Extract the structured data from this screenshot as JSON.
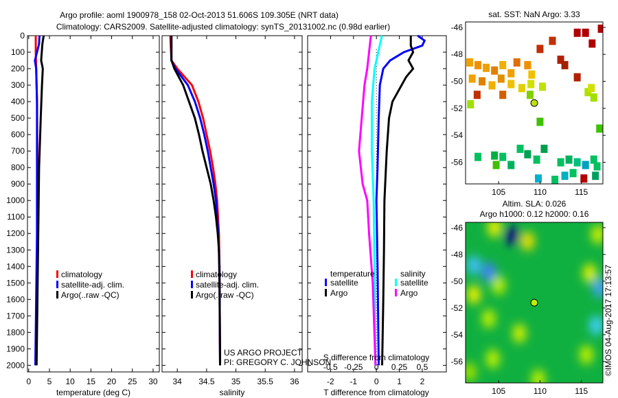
{
  "header": {
    "line1": "Argo profile: aoml 1900978_158 02-Oct-2013 51.606S 109.305E (NRT data)",
    "line2": "Climatology: CARS2009. Satellite-adjusted climatology: synTS_20131002.nc (0.98d earlier)"
  },
  "credit": {
    "project": "US ARGO PROJECT",
    "pi": "PI: GREGORY C. JOHNSON"
  },
  "timestamp": "©IMOS 04-Aug-2017 17:13:57",
  "colors": {
    "clim": "#ff0000",
    "sat": "#0000ff",
    "argo": "#000000",
    "s_sat": "#00ffff",
    "s_argo": "#ff00ff"
  },
  "chart_data": [
    {
      "type": "line",
      "name": "temperature",
      "xlabel": "temperature (deg C)",
      "xlim": [
        -0.3,
        31.5
      ],
      "ylim": [
        2040,
        0
      ],
      "xticks": [
        0,
        5,
        10,
        15,
        20,
        25,
        30
      ],
      "yticks": [
        0,
        100,
        200,
        300,
        400,
        500,
        600,
        700,
        800,
        900,
        1000,
        1100,
        1200,
        1300,
        1400,
        1500,
        1600,
        1700,
        1800,
        1900,
        2000
      ],
      "legend": [
        "climatology",
        "satellite-adj. clim.",
        "Argo(..raw -QC)"
      ],
      "series": [
        {
          "name": "climatology",
          "color": "#ff0000",
          "pressure": [
            0,
            100,
            200,
            400,
            800,
            1200,
            1600,
            2000
          ],
          "values": [
            1.7,
            1.7,
            1.8,
            2.0,
            2.1,
            2.1,
            1.9,
            1.7
          ]
        },
        {
          "name": "satellite-adj. clim.",
          "color": "#0000ff",
          "pressure": [
            0,
            50,
            100,
            150,
            200,
            400,
            800,
            1200,
            1600,
            2000
          ],
          "values": [
            2.6,
            2.5,
            2.0,
            1.5,
            1.8,
            2.0,
            2.0,
            2.0,
            1.8,
            1.6
          ]
        },
        {
          "name": "Argo",
          "color": "#000000",
          "pressure": [
            0,
            50,
            150,
            200,
            300,
            500,
            800,
            1200,
            1600,
            2000
          ],
          "values": [
            3.6,
            3.3,
            3.0,
            3.4,
            3.2,
            2.9,
            2.5,
            2.3,
            2.1,
            1.9
          ]
        }
      ]
    },
    {
      "type": "line",
      "name": "salinity",
      "xlabel": "salinity",
      "xlim": [
        33.74,
        36.13
      ],
      "ylim": [
        2040,
        0
      ],
      "xticks": [
        34,
        34.5,
        35,
        35.5,
        36
      ],
      "legend": [
        "climatology",
        "satellite-adj. clim.",
        "Argo(..raw -QC)"
      ],
      "series": [
        {
          "name": "climatology",
          "color": "#ff0000",
          "pressure": [
            0,
            150,
            200,
            300,
            400,
            500,
            600,
            700,
            800,
            900,
            1000,
            1200,
            1400,
            2000
          ],
          "values": [
            33.88,
            33.9,
            34.0,
            34.25,
            34.36,
            34.44,
            34.5,
            34.56,
            34.61,
            34.65,
            34.68,
            34.71,
            34.72,
            34.73
          ]
        },
        {
          "name": "satellite-adj. clim.",
          "color": "#0000ff",
          "pressure": [
            0,
            150,
            200,
            300,
            400,
            500,
            600,
            700,
            800,
            900,
            1000,
            1200,
            1400,
            2000
          ],
          "values": [
            33.9,
            33.9,
            33.97,
            34.18,
            34.3,
            34.39,
            34.46,
            34.52,
            34.57,
            34.62,
            34.66,
            34.7,
            34.72,
            34.73
          ]
        },
        {
          "name": "Argo",
          "color": "#000000",
          "pressure": [
            0,
            150,
            200,
            300,
            400,
            500,
            600,
            700,
            800,
            900,
            1000,
            1100,
            1200,
            1300,
            1500,
            2000
          ],
          "values": [
            33.9,
            33.9,
            33.95,
            34.1,
            34.2,
            34.3,
            34.37,
            34.43,
            34.5,
            34.57,
            34.62,
            34.66,
            34.69,
            34.71,
            34.72,
            34.73
          ]
        }
      ]
    },
    {
      "type": "line",
      "name": "difference",
      "xlabel": "T difference from climatology",
      "xlabel2": "S difference from climatology",
      "xlim": [
        -3,
        3.05
      ],
      "xlim_s": [
        -0.75,
        0.7625
      ],
      "xticks": [
        -2,
        -1,
        0,
        1,
        2
      ],
      "xticks_s": [
        -0.5,
        -0.25,
        0,
        0.25,
        0.5
      ],
      "legend_titles": [
        "temperature",
        "salinity"
      ],
      "legend": [
        {
          "label": "satellite",
          "color": "#0000ff"
        },
        {
          "label": "Argo",
          "color": "#000000"
        },
        {
          "label": "satellite",
          "color": "#00ffff"
        },
        {
          "label": "Argo",
          "color": "#ff00ff"
        }
      ],
      "series": [
        {
          "name": "T satellite",
          "color": "#0000ff",
          "axis": "T",
          "pressure": [
            0,
            30,
            60,
            100,
            150,
            200,
            300,
            500,
            800,
            1000,
            1400,
            2000
          ],
          "values": [
            1.8,
            2.1,
            2.0,
            1.2,
            0.6,
            0.3,
            0.15,
            0.1,
            0.05,
            0.0,
            0.05,
            0.1
          ]
        },
        {
          "name": "T Argo",
          "color": "#000000",
          "axis": "T",
          "pressure": [
            0,
            60,
            100,
            150,
            200,
            250,
            300,
            350,
            400,
            500,
            700,
            1000,
            1300,
            1600,
            2000
          ],
          "values": [
            1.5,
            1.5,
            1.6,
            1.4,
            1.6,
            1.3,
            1.1,
            0.9,
            0.7,
            0.55,
            0.45,
            0.35,
            0.33,
            0.3,
            0.25
          ]
        },
        {
          "name": "S satellite",
          "color": "#00ffff",
          "axis": "S",
          "pressure": [
            0,
            100,
            200,
            400,
            700,
            1000,
            1400,
            2000
          ],
          "values": [
            0.06,
            0.02,
            -0.02,
            -0.05,
            -0.05,
            -0.03,
            -0.02,
            -0.01
          ]
        },
        {
          "name": "S Argo",
          "color": "#ff00ff",
          "axis": "S",
          "pressure": [
            0,
            100,
            200,
            300,
            500,
            700,
            900,
            1000,
            1200,
            1500,
            2000
          ],
          "values": [
            -0.06,
            -0.08,
            -0.1,
            -0.13,
            -0.16,
            -0.19,
            -0.15,
            -0.1,
            -0.08,
            -0.04,
            -0.01
          ]
        }
      ]
    },
    {
      "type": "scatter",
      "name": "sst-map",
      "title": "sat. SST: NaN Argo: 3.33",
      "xlim": [
        101,
        117.6
      ],
      "ylim": [
        -57.6,
        -45.6
      ],
      "xticks": [
        105,
        110,
        115
      ],
      "yticks": [
        -46,
        -48,
        -50,
        -52,
        -54,
        -56
      ],
      "float": [
        109.305,
        -51.606
      ],
      "points": [
        [
          114.5,
          -46.4,
          "#b00000"
        ],
        [
          115.5,
          -46.4,
          "#b00000"
        ],
        [
          117.4,
          -46.1,
          "#b00000"
        ],
        [
          116.3,
          -47.2,
          "#b00000"
        ],
        [
          110,
          -47.6,
          "#c03000"
        ],
        [
          111.5,
          -47,
          "#c03000"
        ],
        [
          112.5,
          -48.4,
          "#b02000"
        ],
        [
          113,
          -48.8,
          "#a02000"
        ],
        [
          101.5,
          -48.6,
          "#f0a000"
        ],
        [
          102.5,
          -48.8,
          "#f09000"
        ],
        [
          103.5,
          -49,
          "#f0a000"
        ],
        [
          104.5,
          -49.2,
          "#e08000"
        ],
        [
          105.5,
          -48.8,
          "#f0b000"
        ],
        [
          106.5,
          -49.4,
          "#f0a000"
        ],
        [
          107.2,
          -48.6,
          "#e07000"
        ],
        [
          108.5,
          -48.8,
          "#f09000"
        ],
        [
          109,
          -49.5,
          "#f0c000"
        ],
        [
          101.8,
          -49.8,
          "#f0a000"
        ],
        [
          103,
          -50,
          "#e08000"
        ],
        [
          104.2,
          -50.3,
          "#f0b000"
        ],
        [
          105.3,
          -49.8,
          "#e09000"
        ],
        [
          106.5,
          -50.2,
          "#f0c000"
        ],
        [
          107.8,
          -50.5,
          "#e0d000"
        ],
        [
          108.9,
          -50.2,
          "#d0e000"
        ],
        [
          110.3,
          -50.4,
          "#c0e000"
        ],
        [
          102.4,
          -51,
          "#c03000"
        ],
        [
          105.5,
          -51,
          "#d06000"
        ],
        [
          108.8,
          -51,
          "#80d000"
        ],
        [
          101.6,
          -51.7,
          "#a0e000"
        ],
        [
          115.8,
          -50.8,
          "#b0e000"
        ],
        [
          116.5,
          -51.2,
          "#a0e000"
        ],
        [
          116.2,
          -50.5,
          "#d0e000"
        ],
        [
          114.5,
          -49.7,
          "#b02000"
        ],
        [
          110,
          -53,
          "#40c000"
        ],
        [
          117.2,
          -53.5,
          "#40c000"
        ],
        [
          102.5,
          -55.6,
          "#00c060"
        ],
        [
          104.5,
          -55.5,
          "#00b040"
        ],
        [
          105.5,
          -55.6,
          "#00c060"
        ],
        [
          107.6,
          -55,
          "#00c060"
        ],
        [
          108.5,
          -55.4,
          "#00a050"
        ],
        [
          109.6,
          -55.8,
          "#00c060"
        ],
        [
          110.5,
          -55,
          "#00a050"
        ],
        [
          106.5,
          -56.2,
          "#00b060"
        ],
        [
          104.7,
          -56.2,
          "#40c000"
        ],
        [
          112.5,
          -56,
          "#00c060"
        ],
        [
          113.5,
          -55.8,
          "#00b060"
        ],
        [
          114.5,
          -56,
          "#00c080"
        ],
        [
          115.5,
          -56.2,
          "#00a0c0"
        ],
        [
          116.5,
          -55.8,
          "#00c060"
        ],
        [
          113,
          -57,
          "#00b0c0"
        ],
        [
          114,
          -56.8,
          "#00c060"
        ],
        [
          115.3,
          -57.2,
          "#b00000"
        ],
        [
          116.7,
          -57,
          "#00a060"
        ],
        [
          109.8,
          -57.2,
          "#00b0d0"
        ],
        [
          111.8,
          -57.3,
          "#00c060"
        ],
        [
          116.9,
          -56.3,
          "#00c060"
        ]
      ]
    },
    {
      "type": "heatmap",
      "name": "sla-map",
      "title": "Altim. SLA: 0.026",
      "subtitle": "Argo h1000: 0.12 h2000: 0.16",
      "xlim": [
        101,
        117.6
      ],
      "ylim": [
        -57.6,
        -45.6
      ],
      "xticks": [
        105,
        110,
        115
      ],
      "yticks": [
        -46,
        -48,
        -50,
        -52,
        -54,
        -56
      ],
      "float": [
        109.305,
        -51.606
      ],
      "blobs": [
        [
          106.6,
          -46.6,
          "#000080"
        ],
        [
          108.5,
          -47,
          "#f0e000"
        ],
        [
          104.5,
          -46,
          "#f0f000"
        ],
        [
          102,
          -48.8,
          "#40c0ff"
        ],
        [
          103.8,
          -49.3,
          "#4080ff"
        ],
        [
          102,
          -51,
          "#f0f000"
        ],
        [
          105,
          -50.3,
          "#c0f000"
        ],
        [
          116,
          -49.4,
          "#e0f000"
        ],
        [
          117.2,
          -50.5,
          "#40a0ff"
        ],
        [
          117,
          -46.5,
          "#d0f000"
        ],
        [
          107.5,
          -53.9,
          "#d0f000"
        ],
        [
          103.8,
          -52.8,
          "#c0f000"
        ],
        [
          109.8,
          -57.3,
          "#c0f000"
        ],
        [
          115.6,
          -55.5,
          "#c0f000"
        ],
        [
          116.8,
          -53.3,
          "#40d0ff"
        ],
        [
          104.3,
          -55.8,
          "#c0f000"
        ],
        [
          101.5,
          -56.8,
          "#a0e000"
        ]
      ]
    }
  ]
}
